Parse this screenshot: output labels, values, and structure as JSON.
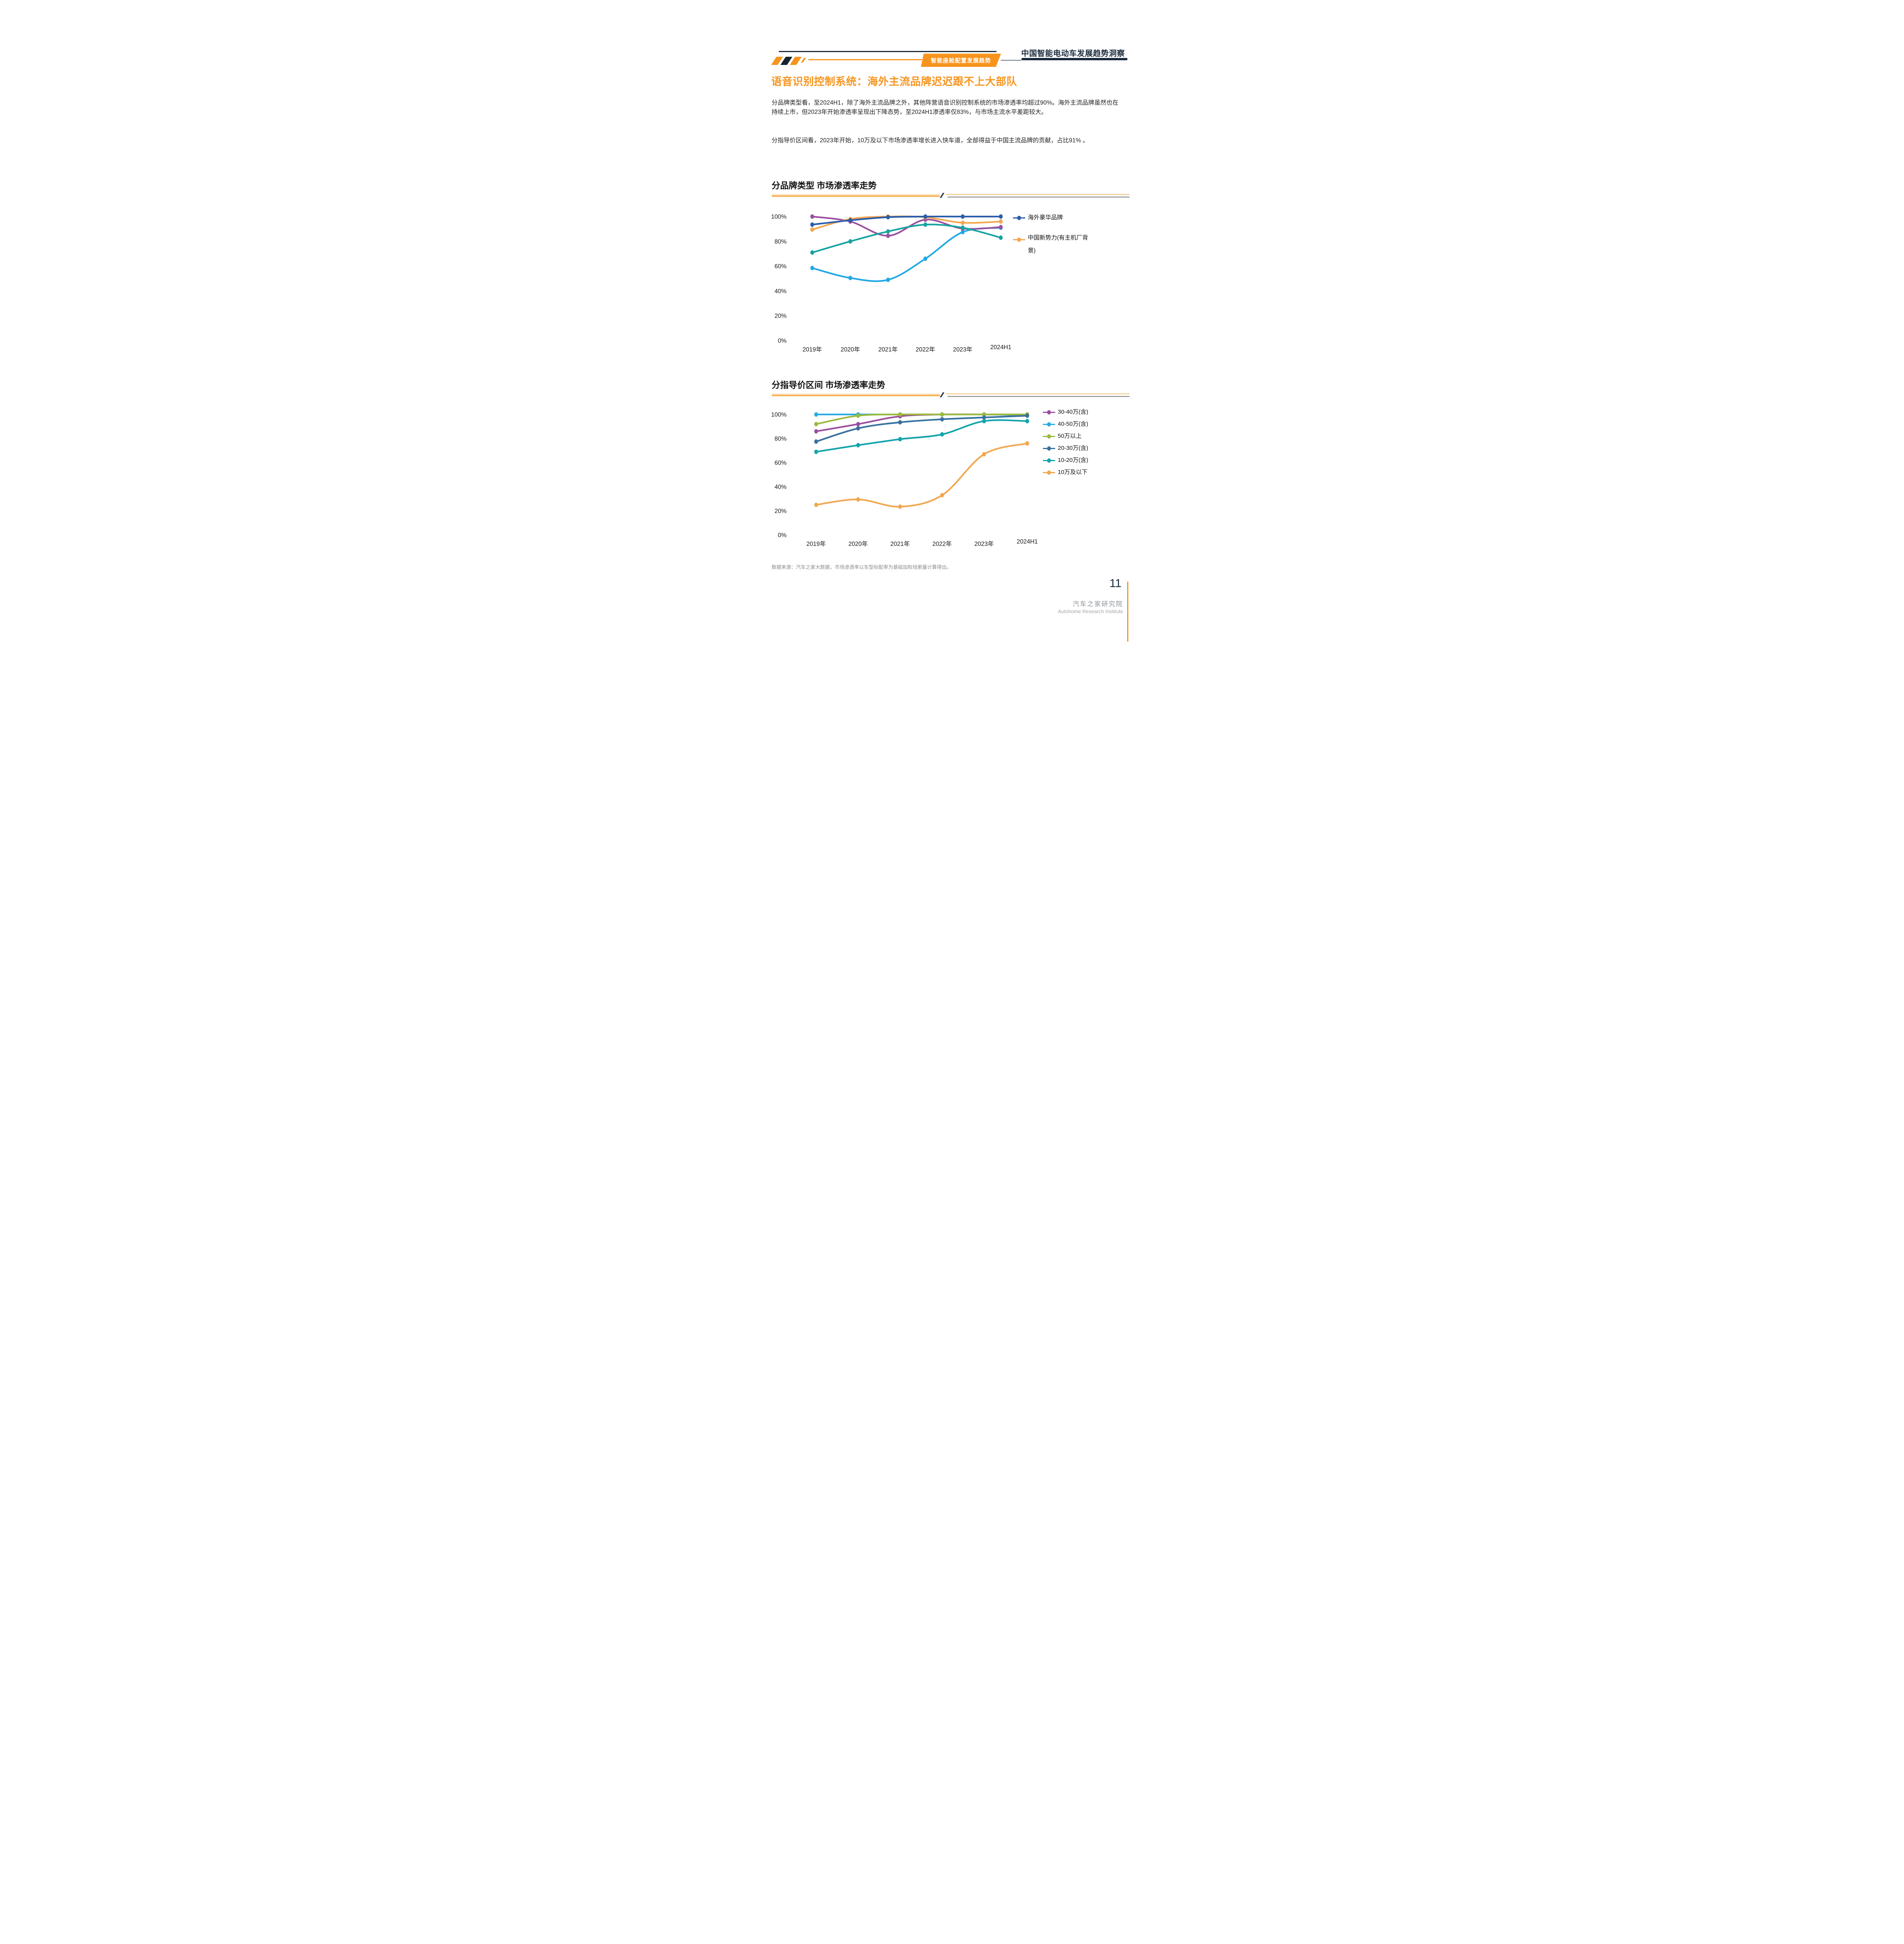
{
  "header": {
    "badge": "智能座舱配置发展趋势",
    "title": "中国智能电动车发展趋势洞察"
  },
  "page": {
    "title": "语音识别控制系统：海外主流品牌迟迟跟不上大部队",
    "para1": "分品牌类型看，至2024H1，除了海外主流品牌之外，其他阵营语音识别控制系统的市场渗透率均超过90%。海外主流品牌虽然也在持续上市，但2023年开始渗透率呈现出下降态势，至2024H1渗透率仅83%，与市场主流水平差距较大。",
    "para2": "分指导价区间看，2023年开始，10万及以下市场渗透率增长进入快车道，全部得益于中国主流品牌的贡献，占比91% 。",
    "source": "数据来源：汽车之家大数据，市场渗透率以车型标配率为基础加权线索量计算得出。",
    "page_number": "11",
    "logo_cn": "汽车之家研究院",
    "logo_en": "Autohome Research Institute"
  },
  "accent_colors": {
    "orange": "#F7941E",
    "navy": "#1B2A3C"
  },
  "chart_data": [
    {
      "type": "line",
      "title": "分品牌类型 市场渗透率走势",
      "categories": [
        "2019年",
        "2020年",
        "2021年",
        "2022年",
        "2023年",
        "2024H1"
      ],
      "yticks": [
        "100%",
        "80%",
        "60%",
        "40%",
        "20%",
        "0%"
      ],
      "ylim": [
        0,
        100
      ],
      "grid": false,
      "legend_position": "right",
      "series": [
        {
          "name": "海外豪华品牌",
          "color": "#2A5CAA",
          "values": [
            93.5,
            97,
            99.5,
            100,
            100,
            100
          ]
        },
        {
          "name": "中国新势力(有主机厂背景)",
          "color": "#F2A74F",
          "values": [
            89.5,
            98,
            100,
            99.5,
            95,
            96
          ]
        },
        {
          "name": "",
          "color": "#9A4F9E",
          "values": [
            100,
            96,
            84.5,
            97.5,
            90.3,
            91.5
          ]
        },
        {
          "name": "",
          "color": "#16A3A0",
          "values": [
            71,
            80,
            88,
            93.5,
            91,
            83
          ]
        },
        {
          "name": "",
          "color": "#22A8E6",
          "values": [
            58.5,
            50.5,
            49,
            66,
            87.5,
            91
          ]
        }
      ]
    },
    {
      "type": "line",
      "title": "分指导价区间 市场渗透率走势",
      "categories": [
        "2019年",
        "2020年",
        "2021年",
        "2022年",
        "2023年",
        "2024H1"
      ],
      "yticks": [
        "100%",
        "80%",
        "60%",
        "40%",
        "20%",
        "0%"
      ],
      "ylim": [
        0,
        100
      ],
      "grid": false,
      "legend_position": "right",
      "series": [
        {
          "name": "30-40万(含)",
          "color": "#9A4F9E",
          "values": [
            86,
            92,
            98.5,
            100,
            100,
            100
          ]
        },
        {
          "name": "40-50万(含)",
          "color": "#29ABE2",
          "values": [
            100,
            100,
            100,
            100,
            100,
            99.5
          ]
        },
        {
          "name": "50万以上",
          "color": "#9BBA3D",
          "values": [
            92,
            99,
            100,
            100,
            100,
            100
          ]
        },
        {
          "name": "20-30万(含)",
          "color": "#38719F",
          "values": [
            77.5,
            88.5,
            93.5,
            96,
            97.5,
            99
          ]
        },
        {
          "name": "10-20万(含)",
          "color": "#13A4AC",
          "values": [
            69,
            74.5,
            79.5,
            83.5,
            94.5,
            94.5
          ]
        },
        {
          "name": "10万及以下",
          "color": "#F2A74F",
          "values": [
            25,
            29.5,
            23.5,
            33,
            67,
            76
          ]
        }
      ]
    }
  ]
}
